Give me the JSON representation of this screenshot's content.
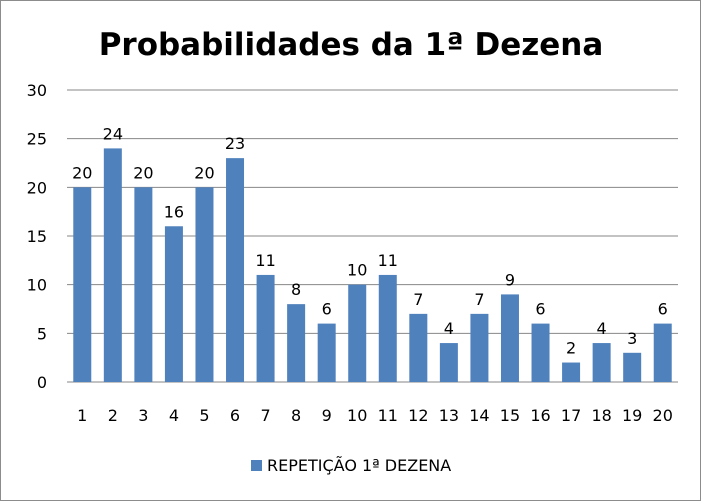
{
  "chart_data": {
    "type": "bar",
    "title": "Probabilidades da 1ª Dezena",
    "categories": [
      "1",
      "2",
      "3",
      "4",
      "5",
      "6",
      "7",
      "8",
      "9",
      "10",
      "11",
      "12",
      "13",
      "14",
      "15",
      "16",
      "17",
      "18",
      "19",
      "20"
    ],
    "series": [
      {
        "name": "REPETIÇÃO 1ª DEZENA",
        "values": [
          20,
          24,
          20,
          16,
          20,
          23,
          11,
          8,
          6,
          10,
          11,
          7,
          4,
          7,
          9,
          6,
          2,
          4,
          3,
          6
        ],
        "color": "#4F81BD"
      }
    ],
    "ylim": [
      0,
      30
    ],
    "yticks": [
      "0",
      "5",
      "10",
      "15",
      "20",
      "25",
      "30"
    ],
    "grid": true,
    "legend_position": "bottom"
  }
}
